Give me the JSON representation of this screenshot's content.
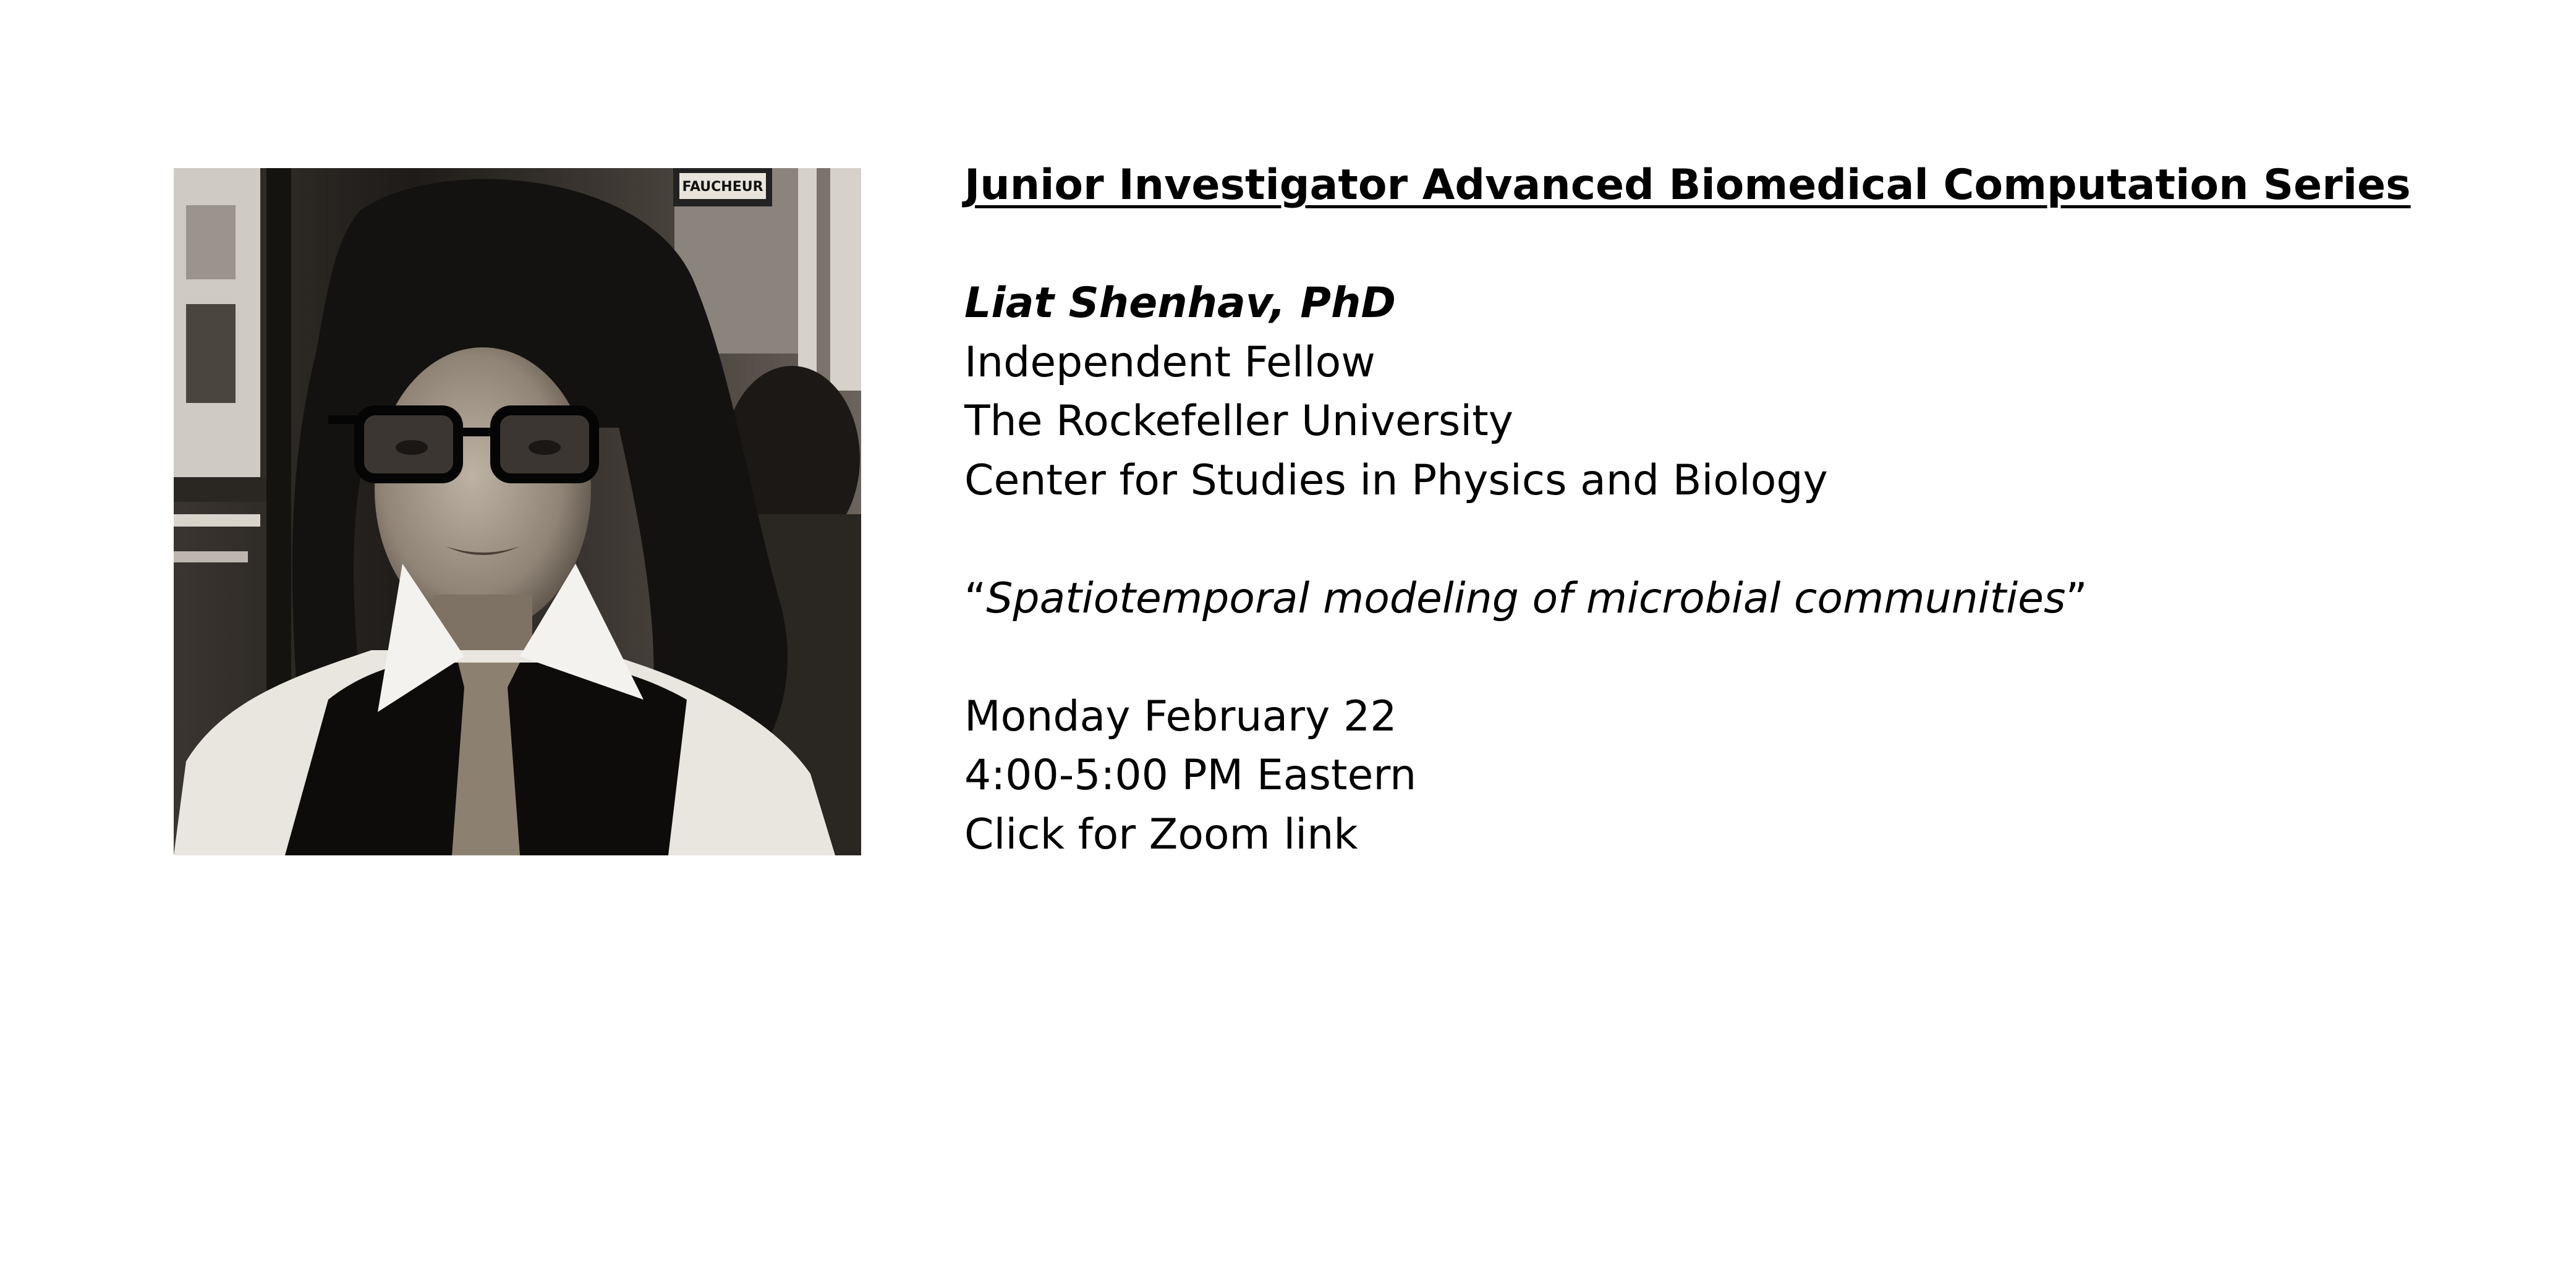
{
  "photo": {
    "sign_text": "FAUCHEUR"
  },
  "series_title": "Junior Investigator Advanced Biomedical Computation Series",
  "speaker": {
    "name": "Liat Shenhav, PhD",
    "position": "Independent Fellow",
    "institution": "The Rockefeller University",
    "center": "Center for Studies in Physics and Biology"
  },
  "talk": {
    "open_quote": "“",
    "title": "Spatiotemporal modeling of microbial communities",
    "close_quote": "”"
  },
  "event": {
    "date": "Monday February 22",
    "time": "4:00-5:00 PM Eastern",
    "zoom_link_text": "Click for Zoom link"
  }
}
